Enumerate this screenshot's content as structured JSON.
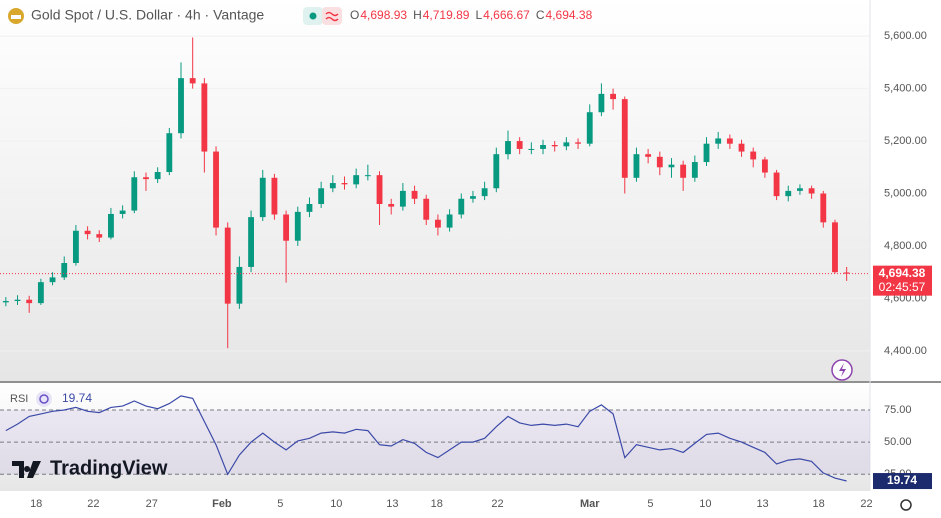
{
  "chart_data": [
    {
      "type": "candlestick",
      "title": "Gold Spot / U.S. Dollar · 4h · Vantage",
      "ohlc_header": [
        {
          "label": "O",
          "value": 4698.93,
          "value_label": "4,698.93"
        },
        {
          "label": "H",
          "value": 4719.89,
          "value_label": "4,719.89"
        },
        {
          "label": "L",
          "value": 4666.67,
          "value_label": "4,666.67"
        },
        {
          "label": "C",
          "value": 4694.38,
          "value_label": "4,694.38"
        }
      ],
      "up_color": "#089981",
      "down_color": "#f23645",
      "open": [
        4585,
        4590,
        4595,
        4582,
        4662,
        4680,
        4735,
        4858,
        4845,
        4832,
        4922,
        4935,
        5062,
        5055,
        5082,
        5230,
        5440,
        5420,
        5160,
        4870,
        4580,
        4720,
        4910,
        5060,
        4920,
        4820,
        4930,
        4960,
        5020,
        5040,
        5035,
        5070,
        5070,
        4960,
        4950,
        5010,
        4980,
        4900,
        4870,
        4920,
        4980,
        4990,
        5020,
        5150,
        5200,
        5170,
        5170,
        5185,
        5180,
        5195,
        5190,
        5310,
        5380,
        5360,
        5060,
        5150,
        5140,
        5100,
        5110,
        5060,
        5120,
        5190,
        5210,
        5190,
        5160,
        5130,
        5080,
        4990,
        5010,
        5020,
        5000,
        4890,
        4698.93
      ],
      "high": [
        4605,
        4612,
        4610,
        4675,
        4700,
        4760,
        4880,
        4875,
        4860,
        4945,
        4955,
        5085,
        5080,
        5100,
        5250,
        5500,
        5595,
        5440,
        5180,
        4890,
        4760,
        4935,
        5090,
        5075,
        4935,
        4950,
        4985,
        5045,
        5070,
        5065,
        5095,
        5110,
        5085,
        4980,
        5040,
        5030,
        4995,
        4920,
        4940,
        5000,
        5010,
        5045,
        5175,
        5240,
        5215,
        5195,
        5205,
        5200,
        5215,
        5210,
        5340,
        5420,
        5400,
        5370,
        5175,
        5170,
        5160,
        5135,
        5125,
        5145,
        5215,
        5235,
        5225,
        5205,
        5175,
        5140,
        5090,
        5030,
        5035,
        5030,
        5010,
        4900,
        4719.89
      ],
      "low": [
        4570,
        4575,
        4545,
        4575,
        4650,
        4670,
        4725,
        4825,
        4815,
        4825,
        4905,
        4925,
        5010,
        5040,
        5070,
        5210,
        5400,
        5080,
        4840,
        4410,
        4560,
        4700,
        4895,
        4900,
        4660,
        4800,
        4910,
        4945,
        5005,
        5015,
        5020,
        5050,
        4880,
        4920,
        4935,
        4960,
        4880,
        4840,
        4855,
        4905,
        4965,
        4975,
        5005,
        5130,
        5150,
        5150,
        5150,
        5160,
        5165,
        5170,
        5180,
        5295,
        5320,
        5000,
        5045,
        5115,
        5070,
        5060,
        5010,
        5045,
        5105,
        5170,
        5170,
        5140,
        5100,
        5060,
        4975,
        4970,
        4995,
        4980,
        4870,
        4695,
        4666.67
      ],
      "close": [
        4590,
        4595,
        4582,
        4662,
        4680,
        4735,
        4858,
        4845,
        4832,
        4922,
        4935,
        5062,
        5055,
        5082,
        5230,
        5440,
        5420,
        5160,
        4870,
        4580,
        4720,
        4910,
        5060,
        4920,
        4820,
        4930,
        4960,
        5020,
        5040,
        5035,
        5070,
        5070,
        4960,
        4950,
        5010,
        4980,
        4900,
        4870,
        4920,
        4980,
        4990,
        5020,
        5150,
        5200,
        5170,
        5170,
        5185,
        5180,
        5195,
        5190,
        5310,
        5380,
        5360,
        5060,
        5150,
        5140,
        5100,
        5110,
        5060,
        5120,
        5190,
        5210,
        5190,
        5160,
        5130,
        5080,
        4990,
        5010,
        5020,
        5000,
        4890,
        4700,
        4694.38
      ],
      "xlim": [
        -0.5,
        74
      ],
      "ylim": [
        4285,
        5738
      ],
      "yticks": [
        {
          "value": 4400,
          "label": "4,400.00"
        },
        {
          "value": 4600,
          "label": "4,600.00"
        },
        {
          "value": 4800,
          "label": "4,800.00"
        },
        {
          "value": 5000,
          "label": "5,000.00"
        },
        {
          "value": 5200,
          "label": "5,200.00"
        },
        {
          "value": 5400,
          "label": "5,400.00"
        },
        {
          "value": 5600,
          "label": "5,600.00"
        }
      ],
      "last_price": {
        "value": 4694.38,
        "value_label": "4,694.38",
        "countdown": "02:45:57"
      }
    },
    {
      "type": "line",
      "label": "RSI",
      "color": "#3b4aa8",
      "values": [
        59,
        64,
        70,
        72,
        74,
        75,
        77,
        74,
        73,
        77,
        78,
        82,
        78,
        76,
        80,
        86,
        84,
        66,
        48,
        25,
        40,
        50,
        57,
        50,
        44,
        51,
        53,
        57,
        58,
        57,
        60,
        59,
        48,
        47,
        52,
        49,
        42,
        38,
        44,
        50,
        50,
        53,
        62,
        70,
        65,
        63,
        64,
        63,
        64,
        62,
        74,
        79,
        72,
        38,
        48,
        46,
        44,
        45,
        42,
        49,
        56,
        57,
        53,
        50,
        46,
        42,
        33,
        36,
        37,
        35,
        26,
        22,
        19.74
      ],
      "xlim": [
        -0.5,
        74
      ],
      "ylim": [
        12,
        96
      ],
      "yticks": [
        {
          "value": 25,
          "label": "25.00"
        },
        {
          "value": 50,
          "label": "50.00"
        },
        {
          "value": 75,
          "label": "75.00"
        }
      ],
      "xticks": [
        {
          "value": 2.6,
          "label": "18"
        },
        {
          "value": 7.5,
          "label": "22"
        },
        {
          "value": 12.5,
          "label": "27"
        },
        {
          "value": 18.5,
          "label": "Feb"
        },
        {
          "value": 23.5,
          "label": "5"
        },
        {
          "value": 28.3,
          "label": "10"
        },
        {
          "value": 33.1,
          "label": "13"
        },
        {
          "value": 36.9,
          "label": "18"
        },
        {
          "value": 42.1,
          "label": "22"
        },
        {
          "value": 50,
          "label": "Mar"
        },
        {
          "value": 55.2,
          "label": "5"
        },
        {
          "value": 59.9,
          "label": "10"
        },
        {
          "value": 64.8,
          "label": "13"
        },
        {
          "value": 69.6,
          "label": "18"
        },
        {
          "value": 73.7,
          "label": "22"
        }
      ]
    }
  ],
  "brand": "TradingView"
}
